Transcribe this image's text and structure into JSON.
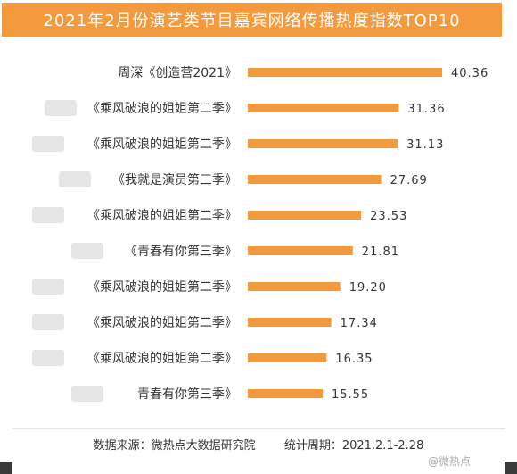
{
  "title": "2021年2月份演艺类节目嘉宾网络传播热度指数TOP10",
  "footer": {
    "source": "数据来源：微热点大数据研究院",
    "period": "统计周期：2021.2.1-2.28"
  },
  "watermark": "@微热点",
  "colors": {
    "bar": "#f39a3f",
    "title_bg": "#f39a3f"
  },
  "chart_data": {
    "type": "bar",
    "orientation": "horizontal",
    "categories": [
      "周深《创造营2021》",
      "《乘风破浪的姐姐第二季》",
      "《乘风破浪的姐姐第二季》",
      "《我就是演员第三季》",
      "《乘风破浪的姐姐第二季》",
      "《青春有你第三季》",
      "《乘风破浪的姐姐第二季》",
      "《乘风破浪的姐姐第二季》",
      "《乘风破浪的姐姐第二季》",
      "青春有你第三季》"
    ],
    "values": [
      40.36,
      31.36,
      31.13,
      27.69,
      23.53,
      21.81,
      19.2,
      17.34,
      16.35,
      15.55
    ],
    "value_labels": [
      "40.36",
      "31.36",
      "31.13",
      "27.69",
      "23.53",
      "21.81",
      "19.20",
      "17.34",
      "16.35",
      "15.55"
    ],
    "xlim": [
      0,
      40.36
    ],
    "grid": false,
    "legend": "none"
  }
}
